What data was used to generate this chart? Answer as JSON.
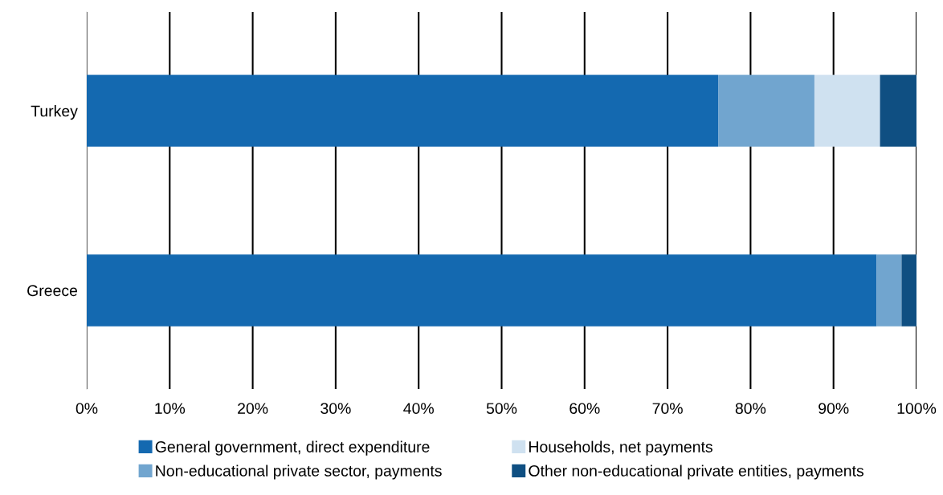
{
  "chart_data": {
    "type": "bar",
    "orientation": "horizontal",
    "stacked": true,
    "categories": [
      "Turkey",
      "Greece"
    ],
    "series": [
      {
        "name": "General government, direct expenditure",
        "color": "#1469b0",
        "values": [
          76.1,
          95.2
        ]
      },
      {
        "name": "Non-educational private sector, payments",
        "color": "#71a5cf",
        "values": [
          11.6,
          3.0
        ]
      },
      {
        "name": "Households, net payments",
        "color": "#cfe1f0",
        "values": [
          7.9,
          0
        ]
      },
      {
        "name": "Other non-educational private entities, payments",
        "color": "#0f4f82",
        "values": [
          4.4,
          1.8
        ]
      }
    ],
    "xlim": [
      0,
      100
    ],
    "xticks": [
      {
        "value": 0,
        "label": "0%"
      },
      {
        "value": 10,
        "label": "10%"
      },
      {
        "value": 20,
        "label": "20%"
      },
      {
        "value": 30,
        "label": "30%"
      },
      {
        "value": 40,
        "label": "40%"
      },
      {
        "value": 50,
        "label": "50%"
      },
      {
        "value": 60,
        "label": "60%"
      },
      {
        "value": 70,
        "label": "70%"
      },
      {
        "value": 80,
        "label": "80%"
      },
      {
        "value": 90,
        "label": "90%"
      },
      {
        "value": 100,
        "label": "100%"
      }
    ],
    "grid": "x",
    "legend": "bottom"
  }
}
